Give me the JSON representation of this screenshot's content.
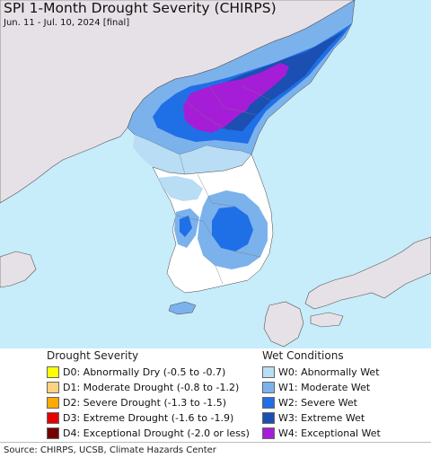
{
  "header": {
    "title": "SPI 1-Month Drought Severity (CHIRPS)",
    "subtitle": "Jun. 11 - Jul. 10, 2024 [final]"
  },
  "colors": {
    "sea": "#c7ecfa",
    "land_outside": "#e6e1e6",
    "land_normal": "#ffffff",
    "W0": "#b8ddf4",
    "W1": "#7bb2ec",
    "W2": "#1f6fe6",
    "W3": "#1b4fb1",
    "W4": "#a61dd8"
  },
  "legend_drought": {
    "heading": "Drought Severity",
    "items": [
      {
        "code": "D0",
        "label": "D0: Abnormally Dry (-0.5 to -0.7)",
        "color": "#ffff00"
      },
      {
        "code": "D1",
        "label": "D1: Moderate Drought (-0.8 to -1.2)",
        "color": "#fcd37f"
      },
      {
        "code": "D2",
        "label": "D2: Severe Drought (-1.3 to -1.5)",
        "color": "#ffaa00"
      },
      {
        "code": "D3",
        "label": "D3: Extreme Drought (-1.6 to -1.9)",
        "color": "#e60000"
      },
      {
        "code": "D4",
        "label": "D4: Exceptional Drought (-2.0 or less)",
        "color": "#730000"
      }
    ]
  },
  "legend_wet": {
    "heading": "Wet Conditions",
    "items": [
      {
        "code": "W0",
        "label": "W0: Abnormally Wet",
        "color": "#b8ddf4"
      },
      {
        "code": "W1",
        "label": "W1: Moderate Wet",
        "color": "#7bb2ec"
      },
      {
        "code": "W2",
        "label": "W2: Severe Wet",
        "color": "#1f6fe6"
      },
      {
        "code": "W3",
        "label": "W3: Extreme Wet",
        "color": "#1b4fb1"
      },
      {
        "code": "W4",
        "label": "W4: Exceptional Wet",
        "color": "#a61dd8"
      }
    ]
  },
  "footer": {
    "source": "Source: CHIRPS, UCSB, Climate Hazards Center"
  }
}
